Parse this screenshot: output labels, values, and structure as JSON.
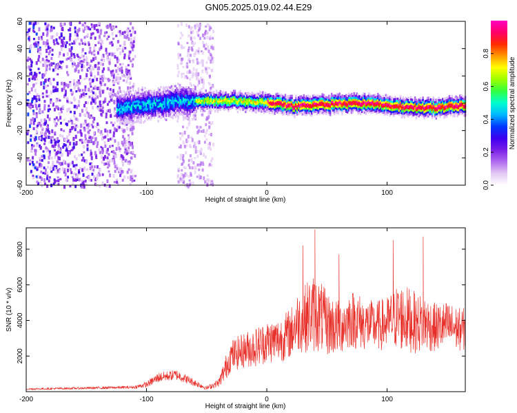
{
  "title": "GN05.2025.019.02.44.E29",
  "colors": {
    "snr_line": "#e8302a",
    "frame": "#000000",
    "colormap": [
      "#ffffff",
      "#e2c8f4",
      "#b06cf0",
      "#7a1ee8",
      "#3c00f0",
      "#0038ff",
      "#00b8ff",
      "#00ffd0",
      "#30ff40",
      "#9cff00",
      "#ffff00",
      "#ff9a00",
      "#ff2a00",
      "#ff0066",
      "#ff00c0"
    ]
  },
  "chart_data": [
    {
      "type": "heatmap",
      "title": "GN05.2025.019.02.44.E29",
      "xlabel": "Height of straight line (km)",
      "ylabel": "Frequency (Hz)",
      "xlim": [
        -200,
        165
      ],
      "ylim": [
        -60,
        60
      ],
      "x_ticks": [
        -200,
        -100,
        0,
        100
      ],
      "y_ticks": [
        -60,
        -40,
        -20,
        0,
        20,
        40,
        60
      ],
      "x_tick_labels": [
        "-200",
        "-100",
        "0",
        "100"
      ],
      "y_tick_labels": [
        "-60",
        "-40",
        "-20",
        "0",
        "20",
        "40",
        "60"
      ],
      "colorbar": {
        "label": "Normalized spectral amplitude",
        "range": [
          0,
          1
        ],
        "ticks": [
          0.0,
          0.2,
          0.4,
          0.6,
          0.8
        ],
        "tick_labels": [
          "0.0",
          "0.2",
          "0.4",
          "0.6",
          "0.8"
        ]
      },
      "frequency_centerline": {
        "x": [
          -125,
          -110,
          -90,
          -70,
          -50,
          -30,
          -10,
          0,
          10,
          20,
          40,
          60,
          80,
          100,
          120,
          140,
          165
        ],
        "y": [
          -4,
          -2,
          0,
          2,
          2,
          2,
          1,
          1,
          0,
          -2,
          -1,
          0,
          0,
          -1,
          -3,
          -3,
          -1
        ]
      },
      "noise_regions": [
        {
          "x_range": [
            -200,
            -110
          ],
          "y_range": [
            -60,
            60
          ],
          "level": "dense scattered noise"
        },
        {
          "x_range": [
            -75,
            -45
          ],
          "y_range": [
            -60,
            60
          ],
          "level": "faint scattered noise"
        }
      ]
    },
    {
      "type": "line",
      "xlabel": "Height of straight line (km)",
      "ylabel": "SNR (10 * v/v)",
      "xlim": [
        -200,
        165
      ],
      "ylim": [
        0,
        9200
      ],
      "x_ticks": [
        -200,
        -100,
        0,
        100
      ],
      "y_ticks": [
        2000,
        4000,
        6000,
        8000
      ],
      "x_tick_labels": [
        "-200",
        "-100",
        "0",
        "100"
      ],
      "y_tick_labels": [
        "2000",
        "4000",
        "6000",
        "8000"
      ],
      "envelope": {
        "x": [
          -200,
          -150,
          -110,
          -100,
          -90,
          -80,
          -75,
          -60,
          -50,
          -40,
          -35,
          -30,
          -20,
          -10,
          0,
          10,
          20,
          25,
          30,
          35,
          40,
          45,
          50,
          60,
          70,
          75,
          80,
          90,
          100,
          105,
          110,
          120,
          125,
          130,
          140,
          150,
          160,
          165
        ],
        "mean": [
          150,
          200,
          250,
          400,
          800,
          900,
          950,
          500,
          200,
          500,
          1200,
          2000,
          2300,
          2500,
          2800,
          2900,
          3300,
          3900,
          4000,
          4300,
          4400,
          4200,
          3800,
          3600,
          4100,
          4000,
          3800,
          3700,
          3800,
          4100,
          4200,
          4000,
          3800,
          3900,
          3600,
          3700,
          3500,
          3500
        ],
        "amp": [
          100,
          120,
          150,
          300,
          500,
          500,
          550,
          350,
          200,
          400,
          1200,
          1600,
          1800,
          2000,
          2200,
          2300,
          2600,
          3000,
          3300,
          3800,
          4000,
          3600,
          3300,
          2800,
          3000,
          3000,
          2700,
          2500,
          2800,
          3000,
          3500,
          3300,
          3000,
          3000,
          2500,
          2500,
          2200,
          2200
        ]
      },
      "peaks": [
        {
          "x": 40,
          "y": 9100
        },
        {
          "x": 30,
          "y": 8200
        },
        {
          "x": 105,
          "y": 8500
        },
        {
          "x": 130,
          "y": 8700
        },
        {
          "x": 60,
          "y": 7700
        }
      ]
    }
  ]
}
